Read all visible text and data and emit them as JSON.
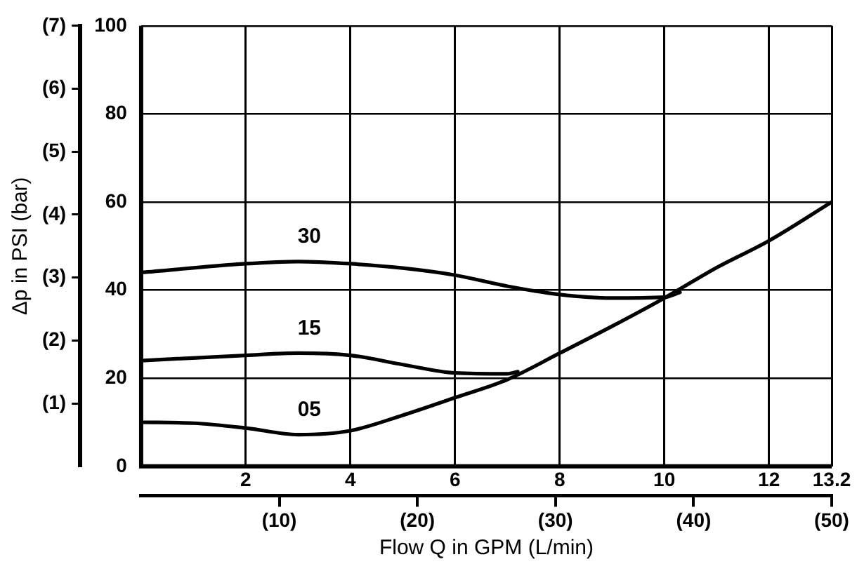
{
  "chart_data": {
    "type": "line",
    "xlabel": "Flow Q in GPM (L/min)",
    "y2label": "Δp in PSI (bar)",
    "xlim": [
      0,
      13.2
    ],
    "xticks": [
      2,
      4,
      6,
      8,
      10,
      12,
      13.2
    ],
    "x2lim": [
      0,
      50
    ],
    "x2ticks": [
      {
        "value": 10,
        "label": "(10)"
      },
      {
        "value": 20,
        "label": "(20)"
      },
      {
        "value": 30,
        "label": "(30)"
      },
      {
        "value": 40,
        "label": "(40)"
      },
      {
        "value": 50,
        "label": "(50)"
      }
    ],
    "ylim": [
      0,
      100
    ],
    "yticks": [
      0,
      20,
      40,
      60,
      80,
      100
    ],
    "y2lim": [
      0,
      7
    ],
    "y2ticks": [
      {
        "value": 1,
        "label": "(1)"
      },
      {
        "value": 2,
        "label": "(2)"
      },
      {
        "value": 3,
        "label": "(3)"
      },
      {
        "value": 4,
        "label": "(4)"
      },
      {
        "value": 5,
        "label": "(5)"
      },
      {
        "value": 6,
        "label": "(6)"
      },
      {
        "value": 7,
        "label": "(7)"
      }
    ],
    "grid": true,
    "legend": false,
    "marker": "none",
    "line_style": "solid",
    "series": [
      {
        "name": "30",
        "color": "#000000",
        "x": [
          0,
          2,
          3,
          4,
          5,
          6,
          7,
          8,
          9,
          10,
          10.3
        ],
        "values": [
          44,
          46,
          46.5,
          46,
          45,
          43.4,
          40.9,
          39,
          38.2,
          38.4,
          39.5
        ]
      },
      {
        "name": "15",
        "color": "#000000",
        "x": [
          0,
          2,
          3,
          4,
          5,
          6,
          7,
          7.2
        ],
        "values": [
          24,
          25.2,
          25.7,
          25.2,
          23.1,
          21.2,
          21,
          21.5
        ]
      },
      {
        "name": "05",
        "color": "#000000",
        "x": [
          0,
          1,
          2,
          3,
          4,
          5,
          6,
          7,
          8,
          9,
          10,
          11,
          12,
          13.2
        ],
        "values": [
          10,
          9.8,
          8.7,
          7.2,
          8.1,
          11.6,
          15.6,
          19.7,
          25.7,
          31.8,
          38.2,
          45.1,
          51.2,
          60
        ]
      }
    ]
  }
}
